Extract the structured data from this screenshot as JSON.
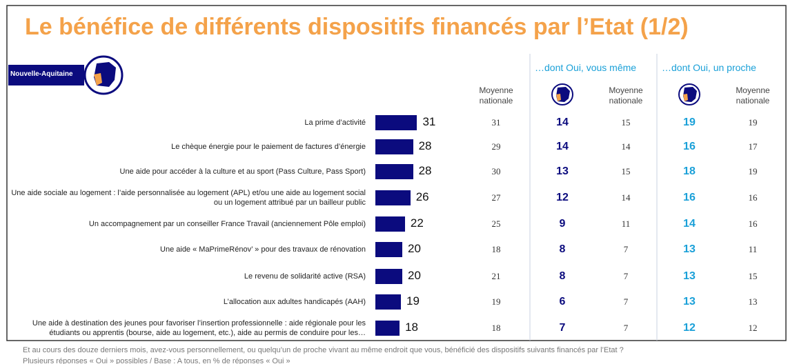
{
  "title": "Le bénéfice de différents dispositifs financés par l’Etat (1/2)",
  "region_label": "Nouvelle-Aquitaine",
  "chart_data": {
    "type": "bar",
    "color": "#0b0b7e",
    "categories": [
      "La prime d’activité",
      "Le chèque énergie pour le paiement de factures d’énergie",
      "Une aide pour accéder à la culture et au sport (Pass Culture, Pass Sport)",
      "Une aide sociale au logement : l’aide personnalisée au logement (APL) et/ou une aide au logement social ou un logement attribué par un bailleur public",
      "Un accompagnement par un conseiller France Travail (anciennement Pôle emploi)",
      "Une aide « MaPrimeRénov’ » pour des travaux de rénovation",
      "Le revenu de solidarité active (RSA)",
      "L’allocation aux adultes handicapés (AAH)",
      "Une aide à destination des jeunes pour favoriser l’insertion professionnelle : aide régionale pour les étudiants ou apprentis (bourse, aide au logement, etc.), aide au permis de conduire pour les…"
    ],
    "values": [
      31,
      28,
      28,
      26,
      22,
      20,
      20,
      19,
      18
    ]
  },
  "table": {
    "groups": [
      "…dont Oui, vous même",
      "…dont Oui, un proche"
    ],
    "columns": [
      {
        "header": "Moyenne nationale",
        "values": [
          31,
          29,
          30,
          27,
          25,
          18,
          21,
          19,
          18
        ]
      },
      {
        "values": [
          14,
          14,
          13,
          12,
          9,
          8,
          8,
          6,
          7
        ],
        "color": "#0b0b7e"
      },
      {
        "header": "Moyenne nationale",
        "values": [
          15,
          14,
          15,
          14,
          11,
          7,
          7,
          7,
          7
        ]
      },
      {
        "values": [
          19,
          16,
          18,
          16,
          14,
          13,
          13,
          13,
          12
        ],
        "color": "#1aa0d8"
      },
      {
        "header": "Moyenne nationale",
        "values": [
          19,
          17,
          19,
          16,
          16,
          11,
          15,
          13,
          12
        ]
      }
    ]
  },
  "footnotes": [
    "Et au cours des douze derniers mois, avez-vous personnellement, ou quelqu’un de proche vivant au même endroit que vous, bénéficié des dispositifs suivants financés par l’Etat ?",
    "Plusieurs réponses « Oui » possibles / Base : A tous, en % de réponses « Oui »"
  ]
}
